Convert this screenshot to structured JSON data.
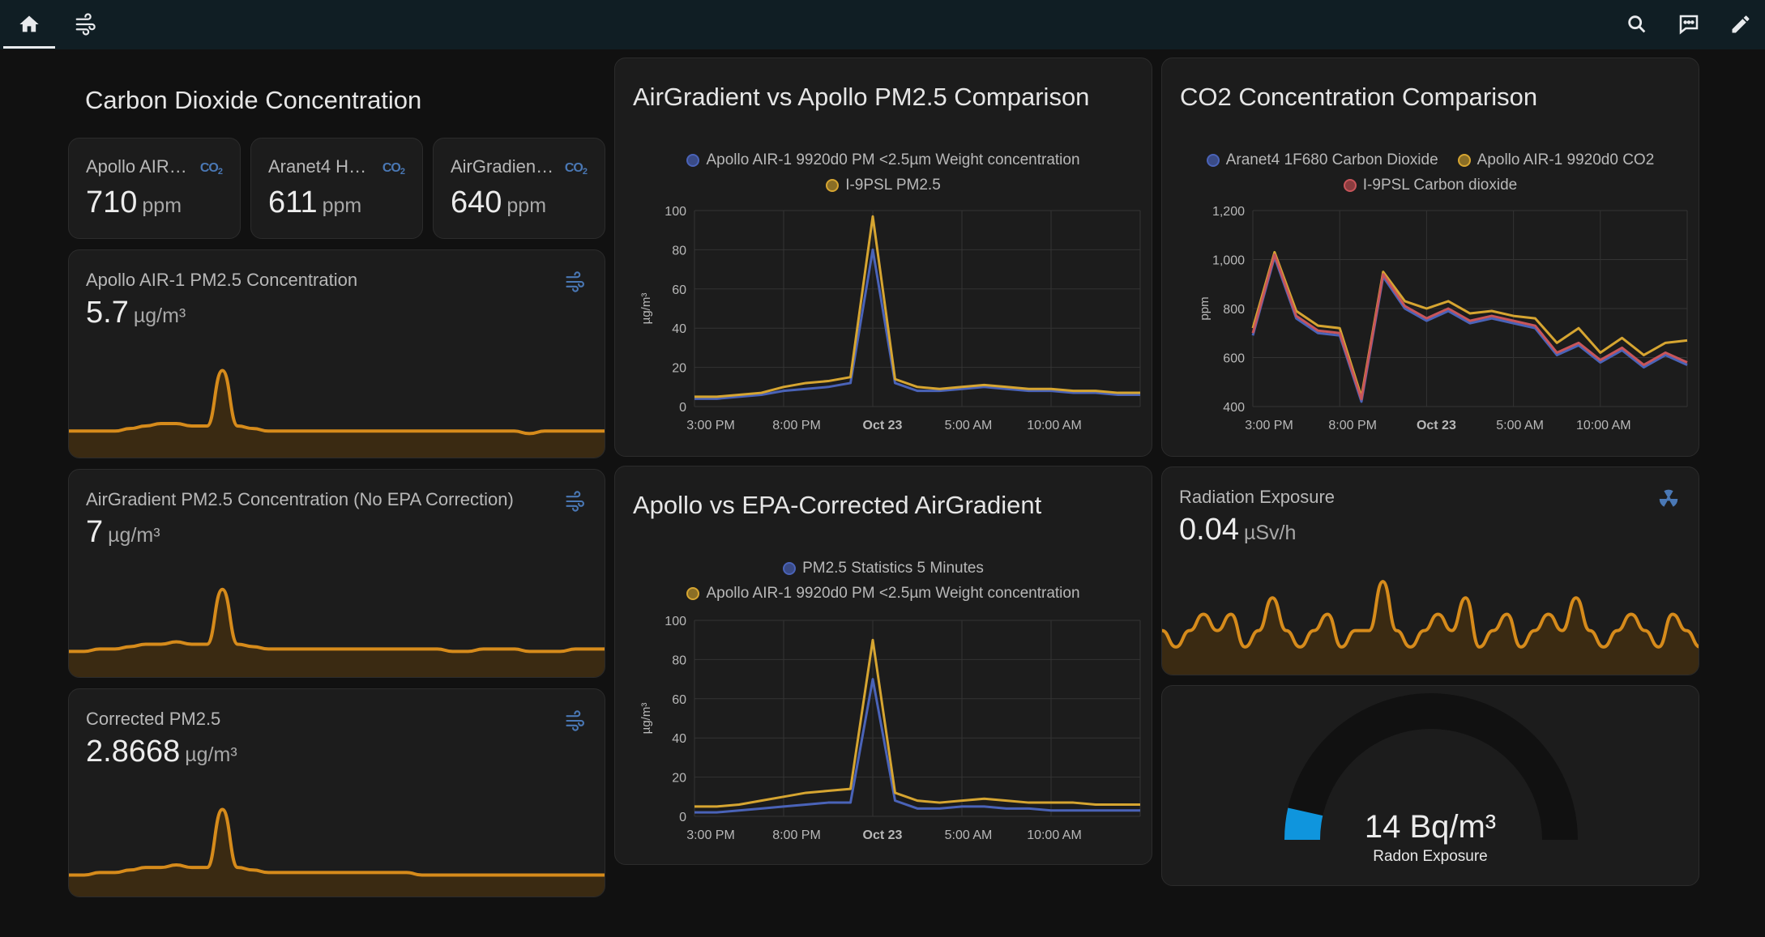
{
  "toolbar": {
    "home_icon": "home-icon",
    "energy_icon": "wind-icon",
    "search_icon": "search-icon",
    "assist_icon": "assist-icon",
    "edit_icon": "pencil-icon"
  },
  "section": {
    "title": "Carbon Dioxide Concentration"
  },
  "co2_tiles": [
    {
      "name": "Apollo AIR-1…",
      "value": "710",
      "unit": "ppm",
      "icon": "CO2"
    },
    {
      "name": "Aranet4 Ho…",
      "value": "611",
      "unit": "ppm",
      "icon": "CO2"
    },
    {
      "name": "AirGradient …",
      "value": "640",
      "unit": "ppm",
      "icon": "CO2"
    }
  ],
  "sensors": [
    {
      "name": "Apollo AIR-1 PM2.5 Concentration",
      "value": "5.7",
      "unit": "µg/m³"
    },
    {
      "name": "AirGradient PM2.5 Concentration (No EPA Correction)",
      "value": "7",
      "unit": "µg/m³"
    },
    {
      "name": "Corrected PM2.5",
      "value": "2.8668",
      "unit": "µg/m³"
    }
  ],
  "radiation": {
    "name": "Radiation Exposure",
    "value": "0.04",
    "unit": "µSv/h"
  },
  "radon": {
    "value": "14 Bq/m³",
    "label": "Radon Exposure",
    "level": 0.07
  },
  "colors": {
    "apollo": "#d6a531",
    "blue": "#4a63b8",
    "red": "#c8555a",
    "spark": "#d68b1b"
  },
  "chart_data": [
    {
      "type": "line",
      "title": "AirGradient vs Apollo PM2.5 Comparison",
      "ylabel": "µg/m³",
      "ylim": [
        0,
        100
      ],
      "yticks": [
        "0",
        "20",
        "40",
        "60",
        "80",
        "100"
      ],
      "xticks": [
        "3:00 PM",
        "8:00 PM",
        "Oct 23",
        "5:00 AM",
        "10:00 AM"
      ],
      "series": [
        {
          "name": "Apollo AIR-1 9920d0 PM <2.5µm Weight concentration",
          "color": "#4a63b8",
          "values": [
            4,
            4,
            5,
            6,
            8,
            9,
            10,
            12,
            80,
            12,
            8,
            8,
            9,
            10,
            9,
            8,
            8,
            7,
            7,
            6,
            6
          ]
        },
        {
          "name": "I-9PSL PM2.5",
          "color": "#d6a531",
          "values": [
            5,
            5,
            6,
            7,
            10,
            12,
            13,
            15,
            97,
            14,
            10,
            9,
            10,
            11,
            10,
            9,
            9,
            8,
            8,
            7,
            7
          ]
        }
      ]
    },
    {
      "type": "line",
      "title": "CO2 Concentration Comparison",
      "ylabel": "ppm",
      "ylim": [
        400,
        1200
      ],
      "yticks": [
        "400",
        "600",
        "800",
        "1,000",
        "1,200"
      ],
      "xticks": [
        "3:00 PM",
        "8:00 PM",
        "Oct 23",
        "5:00 AM",
        "10:00 AM"
      ],
      "series": [
        {
          "name": "Aranet4 1F680 Carbon Dioxide",
          "color": "#4a63b8",
          "values": [
            690,
            1010,
            760,
            700,
            690,
            420,
            930,
            800,
            750,
            790,
            740,
            760,
            740,
            720,
            610,
            650,
            580,
            630,
            560,
            610,
            570
          ]
        },
        {
          "name": "Apollo AIR-1 9920d0 CO2",
          "color": "#d6a531",
          "values": [
            720,
            1030,
            790,
            730,
            720,
            440,
            950,
            830,
            800,
            830,
            780,
            790,
            770,
            760,
            660,
            720,
            620,
            680,
            610,
            660,
            670
          ]
        },
        {
          "name": "I-9PSL Carbon dioxide",
          "color": "#c8555a",
          "values": [
            700,
            1020,
            770,
            710,
            700,
            430,
            940,
            810,
            760,
            800,
            750,
            770,
            750,
            730,
            620,
            660,
            590,
            640,
            570,
            620,
            580
          ]
        }
      ]
    },
    {
      "type": "line",
      "title": "Apollo vs EPA-Corrected AirGradient",
      "ylabel": "µg/m³",
      "ylim": [
        0,
        100
      ],
      "yticks": [
        "0",
        "20",
        "40",
        "60",
        "80",
        "100"
      ],
      "xticks": [
        "3:00 PM",
        "8:00 PM",
        "Oct 23",
        "5:00 AM",
        "10:00 AM"
      ],
      "series": [
        {
          "name": "PM2.5 Statistics 5 Minutes",
          "color": "#4a63b8",
          "values": [
            2,
            2,
            3,
            4,
            5,
            6,
            7,
            7,
            70,
            8,
            4,
            4,
            5,
            5,
            4,
            4,
            3,
            3,
            3,
            3,
            3
          ]
        },
        {
          "name": "Apollo AIR-1 9920d0 PM <2.5µm Weight concentration",
          "color": "#d6a531",
          "values": [
            5,
            5,
            6,
            8,
            10,
            12,
            13,
            14,
            90,
            12,
            8,
            7,
            8,
            9,
            8,
            7,
            7,
            7,
            6,
            6,
            6
          ]
        }
      ]
    }
  ],
  "sparklines": {
    "apollo_pm25": [
      6,
      6,
      6,
      6,
      7,
      8,
      9,
      9,
      8,
      8,
      30,
      8,
      7,
      6,
      6,
      6,
      6,
      6,
      6,
      6,
      6,
      6,
      6,
      6,
      6,
      6,
      6,
      6,
      6,
      6,
      5,
      6,
      6,
      6,
      6,
      6
    ],
    "airgradient_pm25": [
      6,
      6,
      7,
      7,
      8,
      9,
      9,
      10,
      9,
      9,
      32,
      9,
      8,
      7,
      7,
      7,
      7,
      7,
      7,
      7,
      7,
      7,
      7,
      7,
      7,
      6,
      6,
      7,
      7,
      7,
      6,
      6,
      6,
      7,
      7,
      7
    ],
    "corrected_pm25": [
      4,
      4,
      5,
      5,
      6,
      7,
      7,
      8,
      7,
      7,
      30,
      7,
      6,
      5,
      5,
      5,
      5,
      5,
      5,
      5,
      5,
      5,
      5,
      4,
      4,
      4,
      4,
      4,
      4,
      4,
      4,
      4,
      4,
      4,
      4,
      4
    ],
    "radiation": [
      0.05,
      0.04,
      0.05,
      0.06,
      0.05,
      0.06,
      0.04,
      0.05,
      0.07,
      0.05,
      0.04,
      0.05,
      0.06,
      0.04,
      0.05,
      0.05,
      0.08,
      0.05,
      0.04,
      0.05,
      0.06,
      0.05,
      0.07,
      0.04,
      0.05,
      0.06,
      0.04,
      0.05,
      0.06,
      0.05,
      0.07,
      0.05,
      0.04,
      0.05,
      0.06,
      0.05,
      0.04,
      0.06,
      0.05,
      0.04
    ]
  }
}
